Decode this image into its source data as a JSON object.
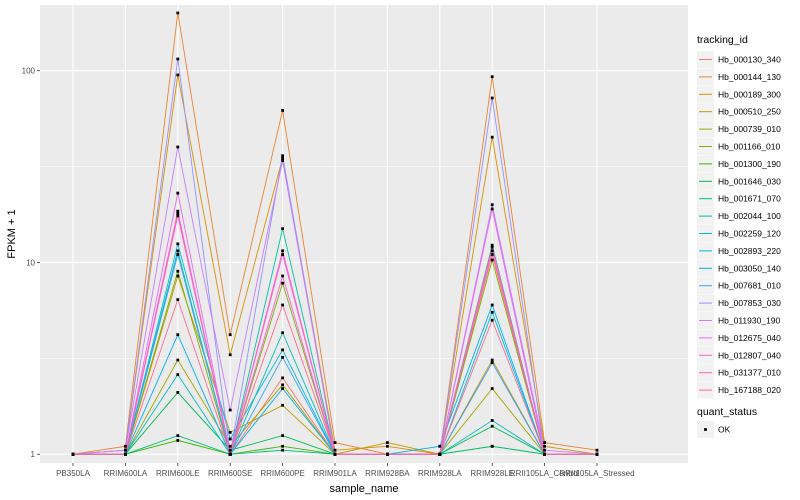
{
  "chart_data": {
    "type": "line",
    "title": "",
    "xlabel": "sample_name",
    "ylabel": "FPKM + 1",
    "y_scale": "log10",
    "ylim": [
      0.9,
      220
    ],
    "y_ticks": [
      1,
      10,
      100
    ],
    "y_tick_labels": [
      "1",
      "10",
      "100"
    ],
    "grid": true,
    "legend_position": "right",
    "categories": [
      "PB350LA",
      "RRIM600LA",
      "RRIM600LE",
      "RRIM600SE",
      "RRIM600PE",
      "RRIM901LA",
      "RRIM928BA",
      "RRIM928LA",
      "RRIM928LE",
      "RRII105LA_Control",
      "RRII105LA_Stressed"
    ],
    "color_legend": {
      "title": "tracking_id",
      "items": [
        "Hb_000130_340",
        "Hb_000144_130",
        "Hb_000189_300",
        "Hb_000510_250",
        "Hb_000739_010",
        "Hb_001166_010",
        "Hb_001300_190",
        "Hb_001646_030",
        "Hb_001671_070",
        "Hb_002044_100",
        "Hb_002259_120",
        "Hb_002893_220",
        "Hb_003050_140",
        "Hb_007681_010",
        "Hb_007853_030",
        "Hb_011930_190",
        "Hb_012675_040",
        "Hb_012807_040",
        "Hb_031377_010",
        "Hb_167188_020"
      ]
    },
    "shape_legend": {
      "title": "quant_status",
      "items": [
        "OK"
      ]
    },
    "series": [
      {
        "name": "Hb_000130_340",
        "color": "#F8766D",
        "values": [
          1.0,
          1.0,
          18.0,
          1.0,
          2.5,
          1.0,
          1.0,
          1.0,
          11.0,
          1.0,
          1.0
        ]
      },
      {
        "name": "Hb_000144_130",
        "color": "#EA8331",
        "values": [
          1.0,
          1.1,
          200.0,
          4.2,
          62.0,
          1.15,
          1.0,
          1.0,
          93.0,
          1.15,
          1.05
        ]
      },
      {
        "name": "Hb_000189_300",
        "color": "#D89000",
        "values": [
          1.0,
          1.05,
          95.0,
          3.3,
          35.0,
          1.05,
          1.1,
          1.0,
          45.0,
          1.1,
          1.0
        ]
      },
      {
        "name": "Hb_000510_250",
        "color": "#C09B00",
        "values": [
          1.0,
          1.0,
          8.5,
          1.3,
          1.8,
          1.0,
          1.15,
          1.0,
          3.1,
          1.0,
          1.0
        ]
      },
      {
        "name": "Hb_000739_010",
        "color": "#A3A500",
        "values": [
          1.0,
          1.0,
          3.1,
          1.1,
          2.3,
          1.0,
          1.0,
          1.0,
          2.2,
          1.0,
          1.0
        ]
      },
      {
        "name": "Hb_001166_010",
        "color": "#7CAE00",
        "values": [
          1.0,
          1.0,
          9.0,
          1.0,
          7.8,
          1.0,
          1.0,
          1.0,
          10.3,
          1.0,
          1.0
        ]
      },
      {
        "name": "Hb_001300_190",
        "color": "#39B600",
        "values": [
          1.0,
          1.0,
          1.18,
          1.0,
          1.1,
          1.0,
          1.0,
          1.0,
          1.1,
          1.0,
          1.0
        ]
      },
      {
        "name": "Hb_001646_030",
        "color": "#00BB4E",
        "values": [
          1.0,
          1.0,
          2.1,
          1.05,
          1.25,
          1.0,
          1.0,
          1.0,
          1.4,
          1.0,
          1.0
        ]
      },
      {
        "name": "Hb_001671_070",
        "color": "#00BF7D",
        "values": [
          1.0,
          1.0,
          1.25,
          1.0,
          1.05,
          1.0,
          1.0,
          1.0,
          1.1,
          1.0,
          1.0
        ]
      },
      {
        "name": "Hb_002044_100",
        "color": "#00C1A3",
        "values": [
          1.0,
          1.0,
          11.5,
          1.0,
          15.0,
          1.0,
          1.0,
          1.0,
          12.3,
          1.0,
          1.0
        ]
      },
      {
        "name": "Hb_002259_120",
        "color": "#00BFC4",
        "values": [
          1.0,
          1.0,
          2.6,
          1.0,
          4.3,
          1.0,
          1.0,
          1.0,
          1.5,
          1.0,
          1.0
        ]
      },
      {
        "name": "Hb_002893_220",
        "color": "#00BAE0",
        "values": [
          1.0,
          1.0,
          12.5,
          1.2,
          3.5,
          1.0,
          1.0,
          1.0,
          5.5,
          1.0,
          1.0
        ]
      },
      {
        "name": "Hb_003050_140",
        "color": "#00B0F6",
        "values": [
          1.0,
          1.0,
          4.2,
          1.0,
          2.2,
          1.0,
          1.0,
          1.1,
          6.0,
          1.0,
          1.0
        ]
      },
      {
        "name": "Hb_007681_010",
        "color": "#35A2FF",
        "values": [
          1.0,
          1.0,
          11.0,
          1.0,
          3.2,
          1.0,
          1.0,
          1.0,
          3.0,
          1.0,
          1.0
        ]
      },
      {
        "name": "Hb_007853_030",
        "color": "#9590FF",
        "values": [
          1.0,
          1.05,
          115.0,
          1.0,
          36.0,
          1.0,
          1.0,
          1.0,
          72.0,
          1.0,
          1.0
        ]
      },
      {
        "name": "Hb_011930_190",
        "color": "#C77CFF",
        "values": [
          1.0,
          1.05,
          40.0,
          1.7,
          34.0,
          1.0,
          1.0,
          1.0,
          20.0,
          1.05,
          1.0
        ]
      },
      {
        "name": "Hb_012675_040",
        "color": "#E76BF3",
        "values": [
          1.0,
          1.0,
          23.0,
          1.0,
          11.0,
          1.0,
          1.0,
          1.0,
          19.0,
          1.0,
          1.0
        ]
      },
      {
        "name": "Hb_012807_040",
        "color": "#FA62DB",
        "values": [
          1.0,
          1.0,
          17.5,
          1.0,
          8.5,
          1.0,
          1.0,
          1.0,
          11.5,
          1.0,
          1.0
        ]
      },
      {
        "name": "Hb_031377_010",
        "color": "#FF62BC",
        "values": [
          1.0,
          1.0,
          18.5,
          1.0,
          11.5,
          1.0,
          1.0,
          1.0,
          12.0,
          1.0,
          1.0
        ]
      },
      {
        "name": "Hb_167188_020",
        "color": "#FF6C91",
        "values": [
          1.0,
          1.0,
          6.4,
          1.0,
          6.0,
          1.0,
          1.0,
          1.0,
          5.0,
          1.0,
          1.0
        ]
      }
    ]
  }
}
